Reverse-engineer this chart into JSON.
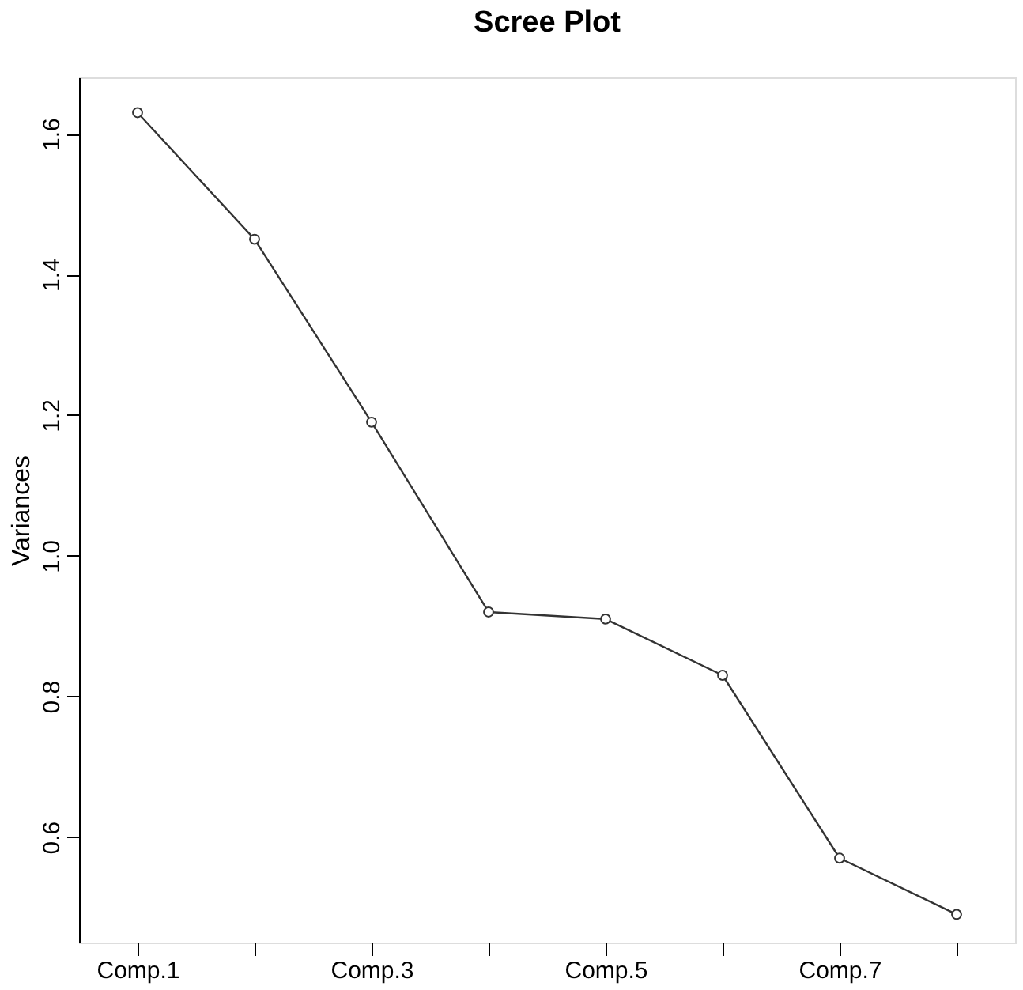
{
  "chart_data": {
    "type": "line",
    "title": "Scree Plot",
    "ylabel": "Variances",
    "categories": [
      "Comp.1",
      null,
      "Comp.3",
      null,
      "Comp.5",
      null,
      "Comp.7",
      null
    ],
    "values": [
      1.63,
      1.45,
      1.19,
      0.92,
      0.91,
      0.83,
      0.57,
      0.49
    ],
    "color": "#333333",
    "marker": "circle",
    "line_style": "solid",
    "grid": false,
    "ylim": [
      0.45,
      1.68
    ],
    "yticks": [
      {
        "value": 0.6,
        "label": "0.6"
      },
      {
        "value": 0.8,
        "label": "0.8"
      },
      {
        "value": 1.0,
        "label": "1.0"
      },
      {
        "value": 1.2,
        "label": "1.2"
      },
      {
        "value": 1.4,
        "label": "1.4"
      },
      {
        "value": 1.6,
        "label": "1.6"
      }
    ]
  }
}
